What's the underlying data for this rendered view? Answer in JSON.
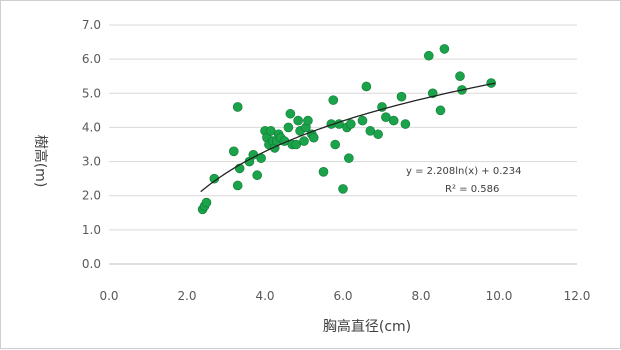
{
  "chart_data": {
    "type": "scatter",
    "title": "",
    "xlabel": "胸高直径(cm)",
    "ylabel": "樹高(m)",
    "xlim": [
      0,
      12
    ],
    "ylim": [
      0,
      7
    ],
    "x_ticks": [
      "0.0",
      "2.0",
      "4.0",
      "6.0",
      "8.0",
      "10.0",
      "12.0"
    ],
    "y_ticks": [
      "0.0",
      "1.0",
      "2.0",
      "3.0",
      "4.0",
      "5.0",
      "6.0",
      "7.0"
    ],
    "grid": true,
    "marker_color": "#1aa34a",
    "trendline_color": "#222222",
    "trendline": {
      "type": "logarithmic",
      "a": 2.208,
      "b": 0.234,
      "x_range": [
        2.35,
        9.9
      ],
      "equation_label": "y = 2.208ln(x) + 0.234",
      "r2_label": "R² = 0.586"
    },
    "series": [
      {
        "points": [
          [
            2.4,
            1.6
          ],
          [
            2.45,
            1.7
          ],
          [
            2.5,
            1.8
          ],
          [
            2.7,
            2.5
          ],
          [
            3.2,
            3.3
          ],
          [
            3.3,
            4.6
          ],
          [
            3.3,
            2.3
          ],
          [
            3.35,
            2.8
          ],
          [
            3.6,
            3.0
          ],
          [
            3.7,
            3.2
          ],
          [
            3.8,
            2.6
          ],
          [
            3.9,
            3.1
          ],
          [
            4.0,
            3.9
          ],
          [
            4.05,
            3.7
          ],
          [
            4.1,
            3.5
          ],
          [
            4.15,
            3.9
          ],
          [
            4.2,
            3.6
          ],
          [
            4.25,
            3.4
          ],
          [
            4.3,
            3.6
          ],
          [
            4.35,
            3.8
          ],
          [
            4.4,
            3.7
          ],
          [
            4.5,
            3.6
          ],
          [
            4.6,
            4.0
          ],
          [
            4.65,
            4.4
          ],
          [
            4.7,
            3.5
          ],
          [
            4.8,
            3.5
          ],
          [
            4.85,
            4.2
          ],
          [
            4.9,
            3.9
          ],
          [
            5.0,
            3.6
          ],
          [
            5.05,
            4.0
          ],
          [
            5.1,
            4.2
          ],
          [
            5.2,
            3.8
          ],
          [
            5.25,
            3.7
          ],
          [
            5.5,
            2.7
          ],
          [
            5.7,
            4.1
          ],
          [
            5.75,
            4.8
          ],
          [
            5.8,
            3.5
          ],
          [
            5.9,
            4.1
          ],
          [
            6.0,
            2.2
          ],
          [
            6.1,
            4.0
          ],
          [
            6.15,
            3.1
          ],
          [
            6.2,
            4.1
          ],
          [
            6.5,
            4.2
          ],
          [
            6.6,
            5.2
          ],
          [
            6.7,
            3.9
          ],
          [
            6.9,
            3.8
          ],
          [
            7.0,
            4.6
          ],
          [
            7.1,
            4.3
          ],
          [
            7.3,
            4.2
          ],
          [
            7.5,
            4.9
          ],
          [
            7.6,
            4.1
          ],
          [
            8.2,
            6.1
          ],
          [
            8.3,
            5.0
          ],
          [
            8.5,
            4.5
          ],
          [
            8.6,
            6.3
          ],
          [
            9.0,
            5.5
          ],
          [
            9.05,
            5.1
          ],
          [
            9.8,
            5.3
          ]
        ]
      }
    ]
  }
}
